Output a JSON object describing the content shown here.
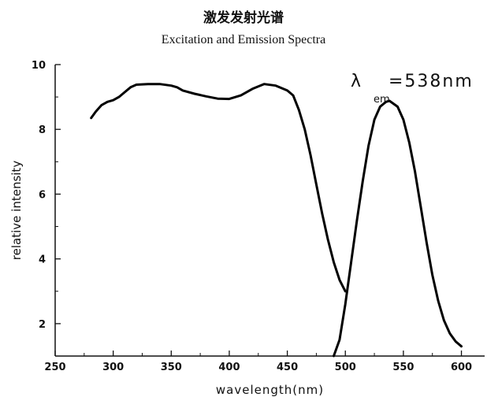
{
  "chart_data": {
    "type": "line",
    "title": "激发发射光谱",
    "subtitle": "Excitation and Emission Spectra",
    "xlabel": "wavelength(nm)",
    "ylabel": "relative intensity",
    "xlim": [
      250,
      620
    ],
    "ylim": [
      1,
      10
    ],
    "x_ticks": [
      250,
      300,
      350,
      400,
      450,
      500,
      550,
      600
    ],
    "y_ticks": [
      2,
      4,
      6,
      8,
      10
    ],
    "grid": false,
    "annotation": {
      "symbol": "λ",
      "subscript": "em",
      "text": "=538nm"
    },
    "series": [
      {
        "points": [
          [
            281,
            8.35
          ],
          [
            285,
            8.55
          ],
          [
            290,
            8.75
          ],
          [
            295,
            8.85
          ],
          [
            300,
            8.9
          ],
          [
            305,
            9.0
          ],
          [
            310,
            9.15
          ],
          [
            315,
            9.3
          ],
          [
            320,
            9.38
          ],
          [
            330,
            9.4
          ],
          [
            340,
            9.4
          ],
          [
            350,
            9.35
          ],
          [
            355,
            9.3
          ],
          [
            360,
            9.2
          ],
          [
            370,
            9.1
          ],
          [
            380,
            9.02
          ],
          [
            390,
            8.95
          ],
          [
            400,
            8.94
          ],
          [
            410,
            9.05
          ],
          [
            420,
            9.25
          ],
          [
            430,
            9.4
          ],
          [
            440,
            9.35
          ],
          [
            450,
            9.2
          ],
          [
            455,
            9.05
          ],
          [
            460,
            8.6
          ],
          [
            465,
            8.0
          ],
          [
            470,
            7.2
          ],
          [
            475,
            6.3
          ],
          [
            480,
            5.4
          ],
          [
            485,
            4.6
          ],
          [
            490,
            3.9
          ],
          [
            495,
            3.35
          ],
          [
            500,
            3.0
          ]
        ]
      },
      {
        "points": [
          [
            490,
            1.0
          ],
          [
            495,
            1.5
          ],
          [
            500,
            2.6
          ],
          [
            505,
            3.9
          ],
          [
            510,
            5.2
          ],
          [
            515,
            6.4
          ],
          [
            520,
            7.5
          ],
          [
            525,
            8.3
          ],
          [
            530,
            8.7
          ],
          [
            535,
            8.85
          ],
          [
            538,
            8.88
          ],
          [
            545,
            8.7
          ],
          [
            550,
            8.3
          ],
          [
            555,
            7.6
          ],
          [
            560,
            6.7
          ],
          [
            565,
            5.6
          ],
          [
            570,
            4.5
          ],
          [
            575,
            3.5
          ],
          [
            580,
            2.7
          ],
          [
            585,
            2.1
          ],
          [
            590,
            1.7
          ],
          [
            595,
            1.45
          ],
          [
            600,
            1.3
          ]
        ]
      }
    ]
  }
}
